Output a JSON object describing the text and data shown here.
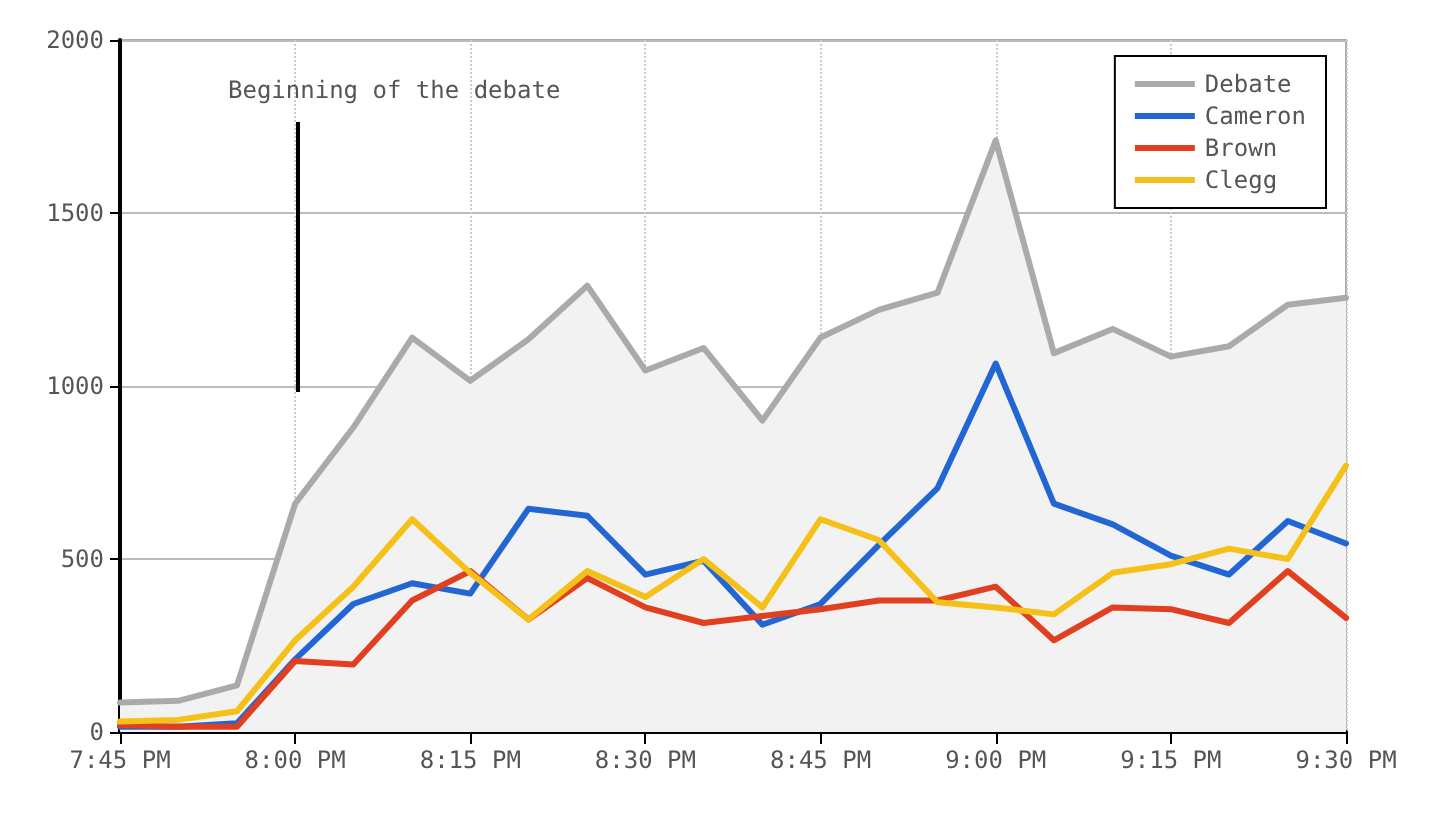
{
  "chart_data": {
    "type": "line",
    "x": [
      19.75,
      19.833,
      19.917,
      20,
      20.083,
      20.167,
      20.25,
      20.333,
      20.417,
      20.5,
      20.583,
      20.667,
      20.75,
      20.833,
      20.917,
      21,
      21.083,
      21.167,
      21.25,
      21.333,
      21.417,
      21.5
    ],
    "series": [
      {
        "name": "Debate",
        "type": "area",
        "color": "#aaaaaa",
        "values": [
          85,
          90,
          135,
          660,
          880,
          1140,
          1015,
          1135,
          1290,
          1045,
          1110,
          900,
          1140,
          1220,
          1270,
          1710,
          1095,
          1165,
          1085,
          1115,
          1235,
          1255
        ]
      },
      {
        "name": "Cameron",
        "color": "#2266d4",
        "values": [
          15,
          15,
          25,
          210,
          370,
          430,
          400,
          645,
          625,
          455,
          495,
          310,
          370,
          540,
          705,
          1065,
          660,
          600,
          510,
          455,
          610,
          545
        ]
      },
      {
        "name": "Brown",
        "color": "#e04020",
        "values": [
          20,
          15,
          15,
          205,
          195,
          380,
          465,
          325,
          445,
          360,
          315,
          335,
          355,
          380,
          380,
          420,
          265,
          360,
          355,
          315,
          465,
          330
        ]
      },
      {
        "name": "Clegg",
        "color": "#f5c018",
        "values": [
          30,
          35,
          60,
          265,
          420,
          615,
          460,
          325,
          465,
          390,
          500,
          360,
          615,
          555,
          375,
          360,
          340,
          460,
          485,
          530,
          500,
          770
        ]
      }
    ],
    "xlim": [
      19.75,
      21.5
    ],
    "xticks": [
      {
        "value": 19.75,
        "label": "7:45 PM"
      },
      {
        "value": 20,
        "label": "8:00 PM"
      },
      {
        "value": 20.25,
        "label": "8:15 PM"
      },
      {
        "value": 20.5,
        "label": "8:30 PM"
      },
      {
        "value": 20.75,
        "label": "8:45 PM"
      },
      {
        "value": 21,
        "label": "9:00 PM"
      },
      {
        "value": 21.25,
        "label": "9:15 PM"
      },
      {
        "value": 21.5,
        "label": "9:30 PM"
      }
    ],
    "ylim": [
      0,
      2000
    ],
    "yticks": [
      0,
      500,
      1000,
      1500,
      2000
    ],
    "grid": true,
    "legend": "top right",
    "marker": "none",
    "line_style": "solid",
    "annotations": [
      "Beginning of the debate"
    ]
  }
}
